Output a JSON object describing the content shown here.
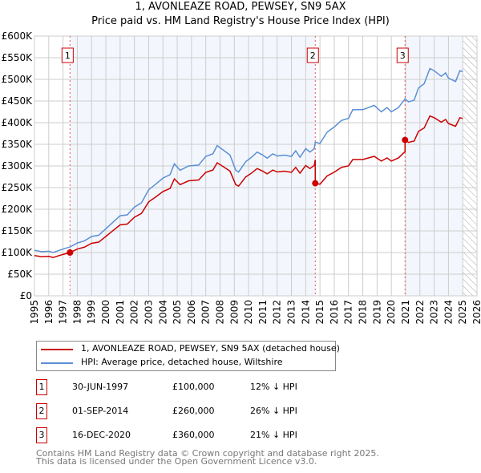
{
  "chart_data": {
    "type": "line",
    "title": "1, AVONLEAZE ROAD, PEWSEY, SN9 5AX",
    "subtitle": "Price paid vs. HM Land Registry's House Price Index (HPI)",
    "xlim": [
      1995,
      2026
    ],
    "ylim": [
      0,
      600000
    ],
    "yticks": [
      {
        "v": 0,
        "label": "£0"
      },
      {
        "v": 50000,
        "label": "£50K"
      },
      {
        "v": 100000,
        "label": "£100K"
      },
      {
        "v": 150000,
        "label": "£150K"
      },
      {
        "v": 200000,
        "label": "£200K"
      },
      {
        "v": 250000,
        "label": "£250K"
      },
      {
        "v": 300000,
        "label": "£300K"
      },
      {
        "v": 350000,
        "label": "£350K"
      },
      {
        "v": 400000,
        "label": "£400K"
      },
      {
        "v": 450000,
        "label": "£450K"
      },
      {
        "v": 500000,
        "label": "£500K"
      },
      {
        "v": 550000,
        "label": "£550K"
      },
      {
        "v": 600000,
        "label": "£600K"
      }
    ],
    "xticks": [
      "1995",
      "1996",
      "1997",
      "1998",
      "1999",
      "2000",
      "2001",
      "2002",
      "2003",
      "2004",
      "2005",
      "2006",
      "2007",
      "2008",
      "2009",
      "2010",
      "2011",
      "2012",
      "2013",
      "2014",
      "2015",
      "2016",
      "2017",
      "2018",
      "2019",
      "2020",
      "2021",
      "2022",
      "2023",
      "2024",
      "2025",
      "2026"
    ],
    "grid": true,
    "data_end": 2025.0,
    "hpi": {
      "name": "HPI: Average price, detached house, Wiltshire",
      "color": "#5b8fd4",
      "x": [
        1995,
        1995.5,
        1996,
        1996.3,
        1997,
        1997.5,
        1998,
        1998.5,
        1999,
        1999.5,
        2000,
        2000.5,
        2001,
        2001.5,
        2002,
        2002.5,
        2003,
        2003.5,
        2004,
        2004.5,
        2004.8,
        2005.2,
        2005.8,
        2006.5,
        2007,
        2007.5,
        2007.8,
        2008.3,
        2008.7,
        2009.1,
        2009.3,
        2009.8,
        2010.2,
        2010.6,
        2011,
        2011.3,
        2011.7,
        2012,
        2012.5,
        2013,
        2013.3,
        2013.6,
        2014,
        2014.3,
        2014.6,
        2014.67,
        2015,
        2015.5,
        2016,
        2016.5,
        2017,
        2017.3,
        2018,
        2018.8,
        2019.3,
        2019.7,
        2020,
        2020.5,
        2020.96,
        2021.2,
        2021.6,
        2021.9,
        2022.3,
        2022.7,
        2023,
        2023.5,
        2023.8,
        2024,
        2024.5,
        2024.8,
        2025
      ],
      "y": [
        105000,
        102000,
        103000,
        100000,
        108000,
        113000,
        122000,
        127000,
        137000,
        140000,
        155000,
        170000,
        185000,
        187000,
        205000,
        215000,
        245000,
        258000,
        272000,
        280000,
        305000,
        290000,
        300000,
        302000,
        322000,
        328000,
        347000,
        335000,
        325000,
        290000,
        286000,
        310000,
        320000,
        332000,
        325000,
        318000,
        328000,
        323000,
        325000,
        322000,
        335000,
        320000,
        340000,
        332000,
        340000,
        355000,
        352000,
        378000,
        390000,
        405000,
        410000,
        430000,
        430000,
        440000,
        425000,
        435000,
        425000,
        435000,
        455000,
        448000,
        452000,
        480000,
        490000,
        525000,
        520000,
        507000,
        515000,
        503000,
        495000,
        520000,
        518000
      ]
    },
    "price_paid": {
      "name": "1, AVONLEAZE ROAD, PEWSEY, SN9 5AX (detached house)",
      "color": "#cc0000"
    },
    "sales": [
      {
        "n": "1",
        "x": 1997.49,
        "date": "30-JUN-1997",
        "price": "£100,000",
        "value": 100000,
        "hpi": "12% ↓ HPI"
      },
      {
        "n": "2",
        "x": 2014.67,
        "date": "01-SEP-2014",
        "price": "£260,000",
        "value": 260000,
        "hpi": "26% ↓ HPI"
      },
      {
        "n": "3",
        "x": 2020.96,
        "date": "16-DEC-2020",
        "price": "£360,000",
        "value": 360000,
        "hpi": "21% ↓ HPI"
      }
    ]
  },
  "footer": [
    "Contains HM Land Registry data © Crown copyright and database right 2025.",
    "This data is licensed under the Open Government Licence v3.0."
  ]
}
